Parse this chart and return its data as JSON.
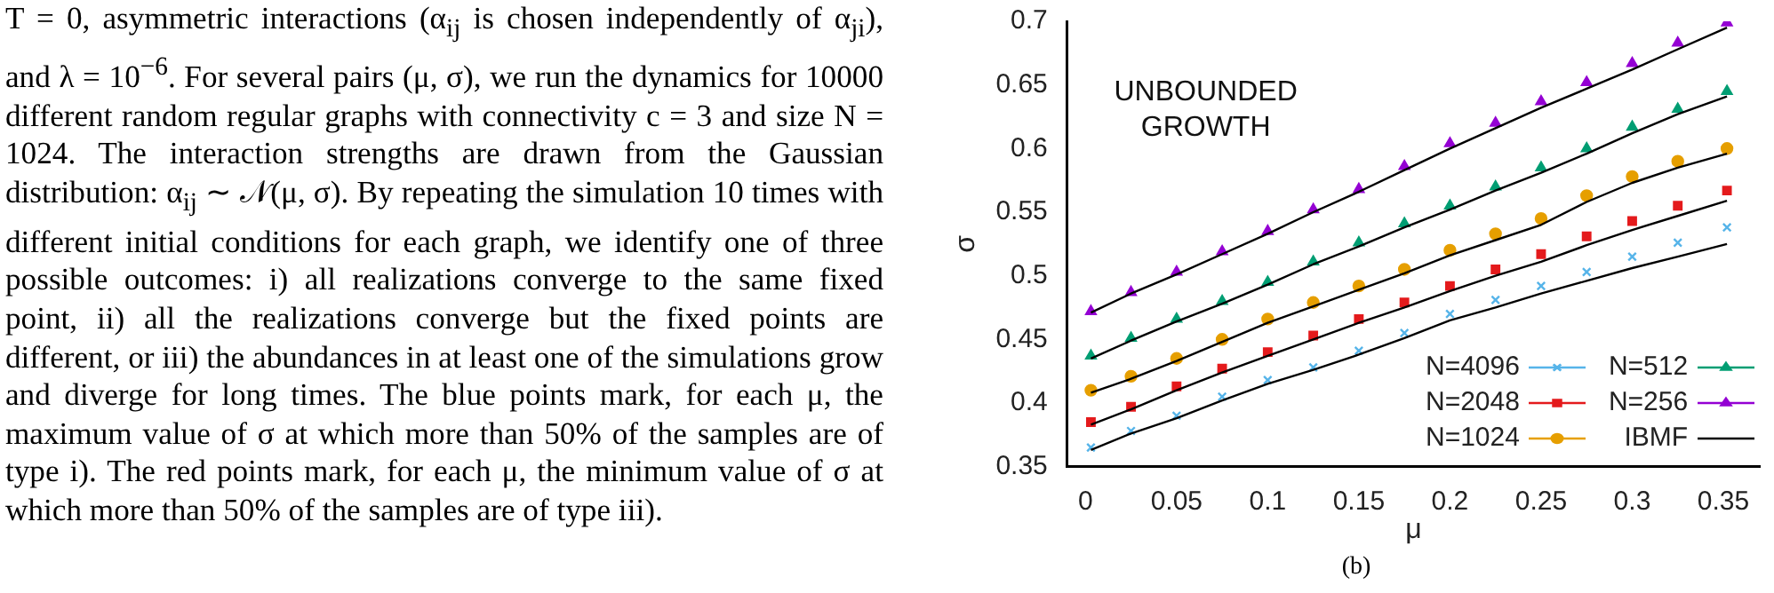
{
  "chart_data": {
    "type": "line",
    "xlabel": "μ",
    "ylabel": "σ",
    "xlim": [
      -0.01,
      0.37
    ],
    "ylim": [
      0.35,
      0.7
    ],
    "xticks": [
      0,
      0.05,
      0.1,
      0.15,
      0.2,
      0.25,
      0.3,
      0.35
    ],
    "yticks": [
      0.35,
      0.4,
      0.45,
      0.5,
      0.55,
      0.6,
      0.65,
      0.7
    ],
    "grid": false,
    "legend": "bottom right",
    "line_style": "solid",
    "x": [
      0.003,
      0.025,
      0.05,
      0.075,
      0.1,
      0.125,
      0.15,
      0.175,
      0.2,
      0.225,
      0.25,
      0.275,
      0.3,
      0.325,
      0.352
    ],
    "series": [
      {
        "name": "N=4096",
        "color": "#56b4e9",
        "marker": "cross",
        "type": "scatter",
        "values": [
          0.365,
          0.378,
          0.39,
          0.405,
          0.418,
          0.428,
          0.441,
          0.455,
          0.47,
          0.481,
          0.492,
          0.503,
          0.515,
          0.526,
          0.538
        ]
      },
      {
        "name": "N=2048",
        "color": "#e41a1c",
        "marker": "square",
        "type": "scatter",
        "values": [
          0.385,
          0.397,
          0.413,
          0.427,
          0.44,
          0.453,
          0.466,
          0.479,
          0.492,
          0.505,
          0.517,
          0.531,
          0.543,
          0.555,
          0.567
        ]
      },
      {
        "name": "N=1024",
        "color": "#e69f00",
        "marker": "circle",
        "type": "scatter",
        "values": [
          0.41,
          0.421,
          0.435,
          0.45,
          0.466,
          0.479,
          0.492,
          0.505,
          0.52,
          0.533,
          0.545,
          0.563,
          0.578,
          0.59,
          0.6
        ]
      },
      {
        "name": "N=512",
        "color": "#009e73",
        "marker": "triangle",
        "type": "scatter",
        "values": [
          0.437,
          0.451,
          0.466,
          0.48,
          0.495,
          0.511,
          0.526,
          0.541,
          0.555,
          0.57,
          0.585,
          0.6,
          0.617,
          0.631,
          0.645
        ]
      },
      {
        "name": "N=256",
        "color": "#9400d3",
        "marker": "triangle",
        "type": "scatter",
        "values": [
          0.472,
          0.487,
          0.503,
          0.519,
          0.535,
          0.552,
          0.568,
          0.586,
          0.604,
          0.62,
          0.637,
          0.652,
          0.667,
          0.683,
          0.699
        ]
      },
      {
        "name": "IBMF",
        "color": "#000000",
        "marker": "none",
        "type": "line",
        "values": [
          0.363,
          0.376,
          0.388,
          0.402,
          0.415,
          0.426,
          0.438,
          0.451,
          0.465,
          0.475,
          0.486,
          0.496,
          0.506,
          0.515,
          0.525
        ]
      },
      {
        "color": "#000000",
        "marker": "none",
        "type": "line",
        "values": [
          0.383,
          0.395,
          0.41,
          0.424,
          0.437,
          0.45,
          0.463,
          0.475,
          0.488,
          0.5,
          0.511,
          0.524,
          0.536,
          0.547,
          0.559
        ]
      },
      {
        "color": "#000000",
        "marker": "none",
        "type": "line",
        "values": [
          0.408,
          0.419,
          0.433,
          0.448,
          0.463,
          0.476,
          0.489,
          0.502,
          0.516,
          0.528,
          0.54,
          0.558,
          0.573,
          0.585,
          0.596
        ]
      },
      {
        "color": "#000000",
        "marker": "none",
        "type": "line",
        "values": [
          0.435,
          0.449,
          0.464,
          0.478,
          0.493,
          0.509,
          0.523,
          0.538,
          0.552,
          0.567,
          0.581,
          0.596,
          0.612,
          0.627,
          0.641
        ]
      },
      {
        "color": "#000000",
        "marker": "none",
        "type": "line",
        "values": [
          0.471,
          0.486,
          0.501,
          0.517,
          0.533,
          0.55,
          0.566,
          0.583,
          0.6,
          0.616,
          0.632,
          0.647,
          0.662,
          0.678,
          0.695
        ]
      }
    ],
    "annotations": [
      "T = 0, asymmetric interactions (α$_{ij}$ is chosen independently of α$_{ji}$), and λ = 10$^{−6}$. For several pairs (μ, σ), we run the dynamics for 10000 different random regular graphs with connectivity c = 3 and size N = 1024. The interaction strengths are drawn from the Gaussian distribution: α$_{ij}$ ∼ 𝒩(μ, σ). By repeating the simulation 10 times with different initial conditions for each graph, we identify one of three possible outcomes: i) all realizations converge to the same fixed point, ii) all the realizations converge but the fixed points are different, or iii) the abundances in at least one of the simulations grow and diverge for long times. The blue points mark, for each μ, the maximum value of σ at which more than 50% of the samples are of type i). The red points mark, for each μ, the minimum value of σ at which more than 50% of the samples are of type iii).",
      "UNBOUNDED GROWTH",
      "(b)"
    ]
  }
}
